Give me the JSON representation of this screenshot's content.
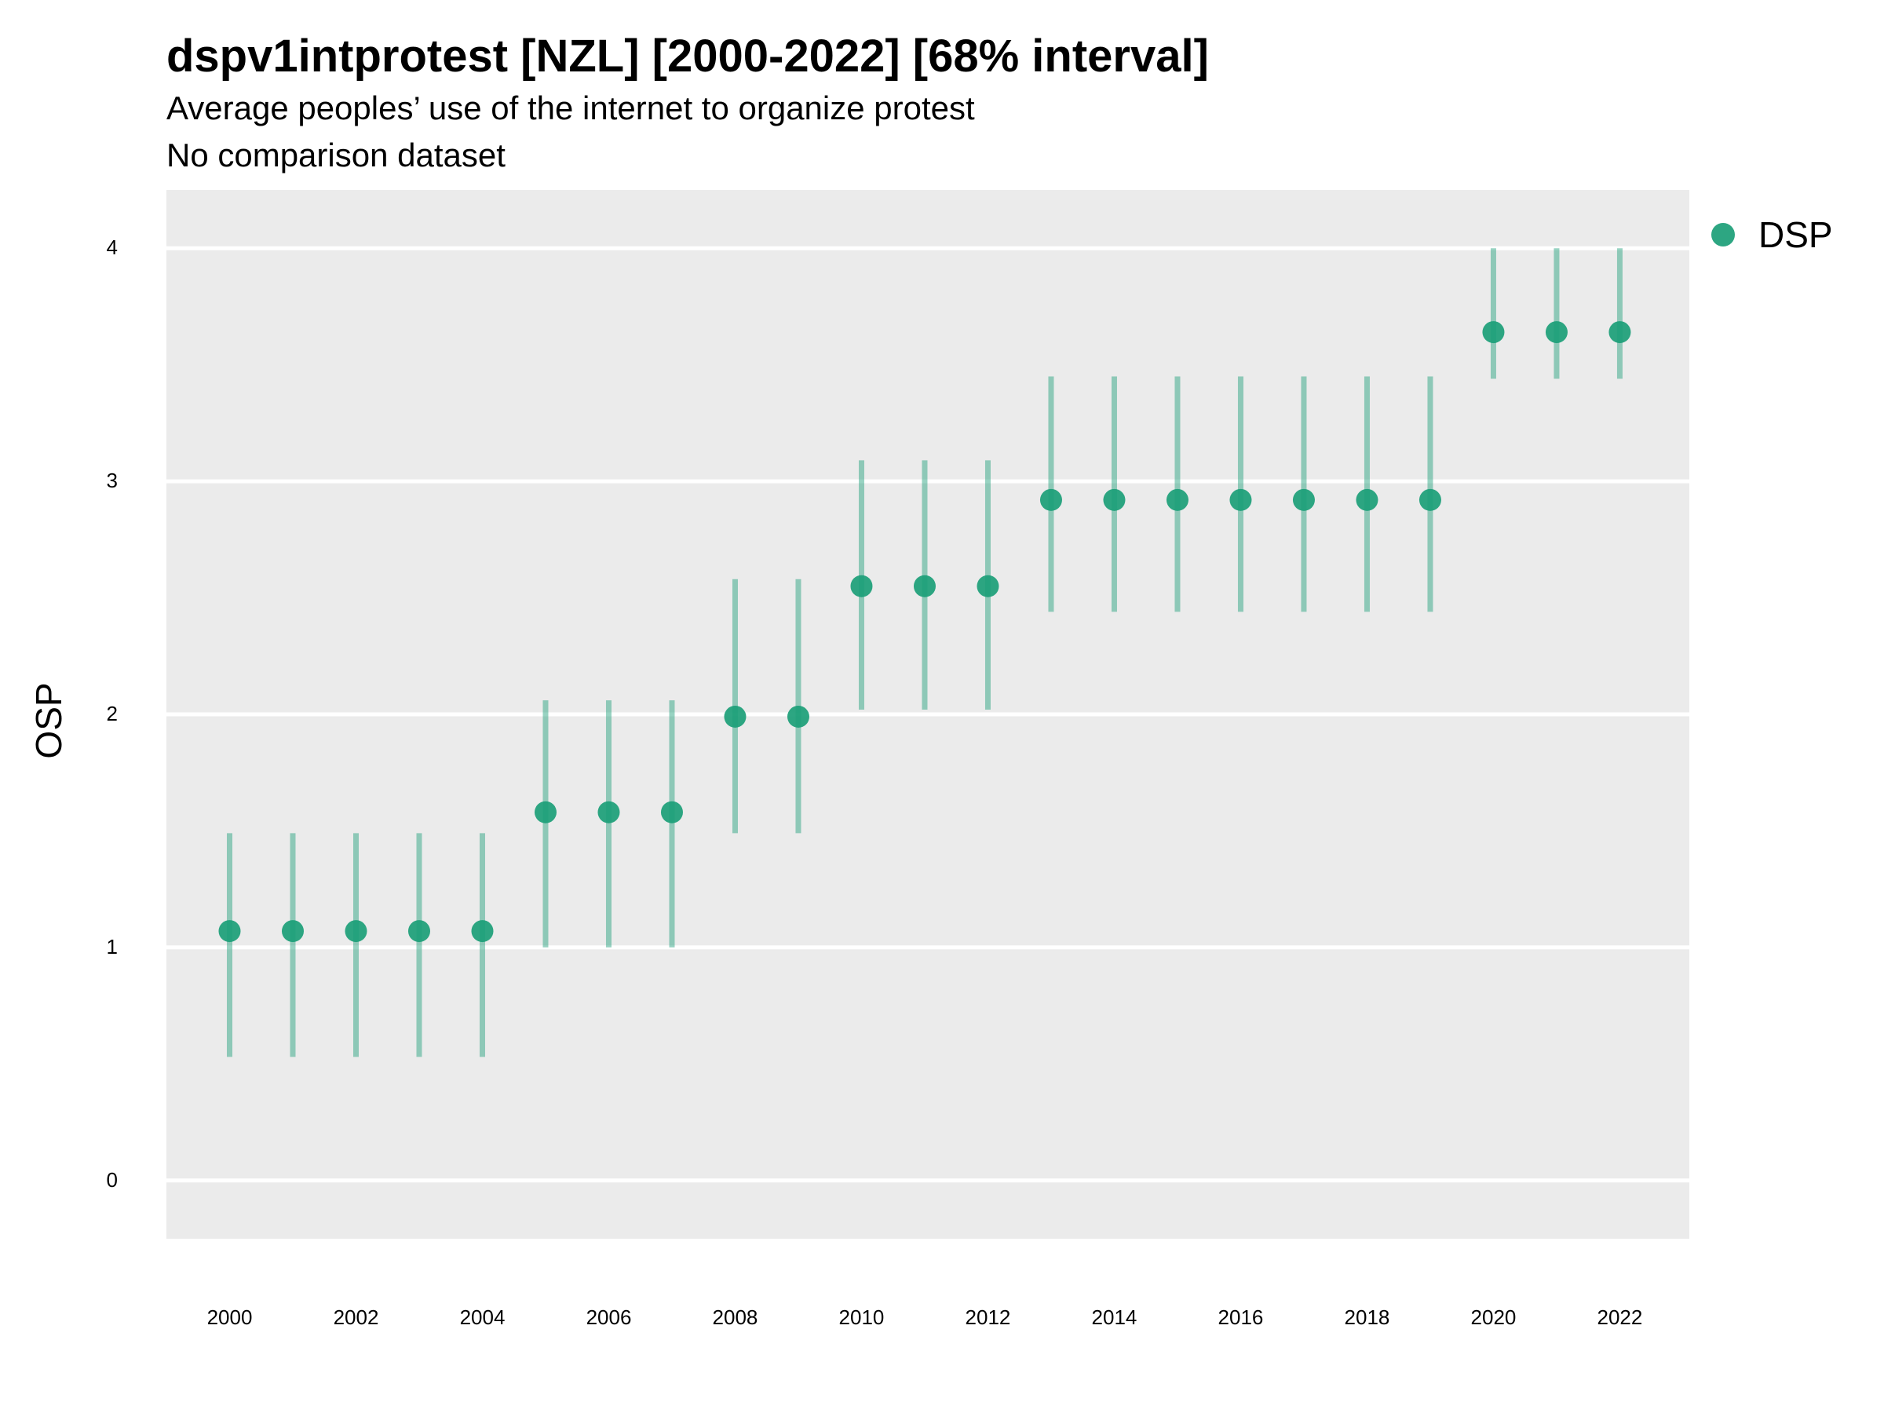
{
  "title": "dspv1intprotest [NZL] [2000-2022] [68% interval]",
  "subtitle": "Average peoples’ use of the internet to organize protest",
  "subtitle2": "No comparison dataset",
  "colors": {
    "series": "#1b9e77",
    "panel": "#ebebeb",
    "grid": "#ffffff"
  },
  "chart_data": {
    "type": "scatter",
    "title": "dspv1intprotest [NZL] [2000-2022] [68% interval]",
    "xlabel": "",
    "ylabel": "OSP",
    "xlim": [
      1999,
      2023.1
    ],
    "ylim": [
      -0.25,
      4.25
    ],
    "x_ticks": [
      2000,
      2002,
      2004,
      2006,
      2008,
      2010,
      2012,
      2014,
      2016,
      2018,
      2020,
      2022
    ],
    "y_ticks": [
      0,
      1,
      2,
      3,
      4
    ],
    "grid": true,
    "legend": "right",
    "series": [
      {
        "name": "DSP",
        "x": [
          2000,
          2001,
          2002,
          2003,
          2004,
          2005,
          2006,
          2007,
          2008,
          2009,
          2010,
          2011,
          2012,
          2013,
          2014,
          2015,
          2016,
          2017,
          2018,
          2019,
          2020,
          2021,
          2022
        ],
        "y": [
          1.07,
          1.07,
          1.07,
          1.07,
          1.07,
          1.58,
          1.58,
          1.58,
          1.99,
          1.99,
          2.55,
          2.55,
          2.55,
          2.92,
          2.92,
          2.92,
          2.92,
          2.92,
          2.92,
          2.92,
          3.64,
          3.64,
          3.64
        ],
        "lower": [
          0.53,
          0.53,
          0.53,
          0.53,
          0.53,
          1.0,
          1.0,
          1.0,
          1.49,
          1.49,
          2.02,
          2.02,
          2.02,
          2.44,
          2.44,
          2.44,
          2.44,
          2.44,
          2.44,
          2.44,
          3.44,
          3.44,
          3.44
        ],
        "upper": [
          1.49,
          1.49,
          1.49,
          1.49,
          1.49,
          2.06,
          2.06,
          2.06,
          2.58,
          2.58,
          3.09,
          3.09,
          3.09,
          3.45,
          3.45,
          3.45,
          3.45,
          3.45,
          3.45,
          3.45,
          4.0,
          4.0,
          4.0
        ]
      }
    ]
  }
}
